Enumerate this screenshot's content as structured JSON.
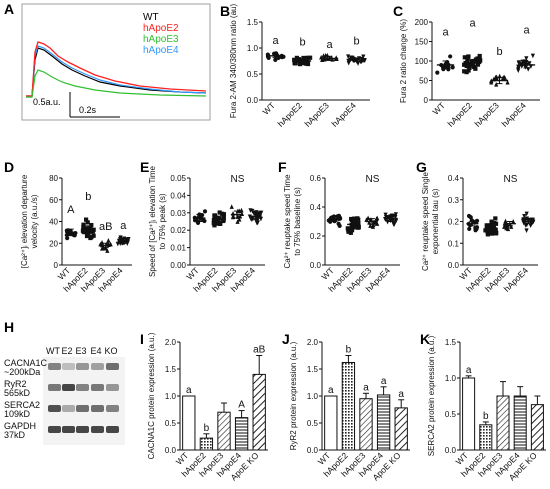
{
  "panel_labels": {
    "A": "A",
    "B": "B",
    "C": "C",
    "D": "D",
    "E": "E",
    "F": "F",
    "G": "G",
    "H": "H",
    "I": "I",
    "J": "J",
    "K": "K"
  },
  "colors": {
    "WT": "#000000",
    "hApoE2": "#ff2020",
    "hApoE3": "#30c030",
    "hApoE4": "#3399ff",
    "scatter": "#111111"
  },
  "panel_a": {
    "legend": [
      {
        "label": "WT",
        "color": "#000000"
      },
      {
        "label": "hApoE2",
        "color": "#ff2020"
      },
      {
        "label": "hApoE3",
        "color": "#30c030"
      },
      {
        "label": "hApoE4",
        "color": "#3399ff"
      }
    ],
    "scale_y": "0.5a.u.",
    "scale_x": "0.2s"
  },
  "panel_h": {
    "lane_labels": [
      "WT",
      "E2",
      "E3",
      "E4",
      "KO"
    ],
    "rows": [
      {
        "name": "CACNA1C",
        "mw": "~200kDa"
      },
      {
        "name": "RyR2",
        "mw": "565kD"
      },
      {
        "name": "SERCA2",
        "mw": "109kD"
      },
      {
        "name": "GAPDH",
        "mw": "37kD"
      }
    ]
  },
  "chart_data": [
    {
      "panel": "B",
      "type": "scatter",
      "categories": [
        "WT",
        "hApoE2",
        "hApoE3",
        "hApoE4"
      ],
      "ylabel": "Fura 2-AM 340/380nm ratio (au)",
      "ylim": [
        0,
        1.5
      ],
      "yticks": [
        0.0,
        0.5,
        1.0,
        1.5
      ],
      "means": [
        0.85,
        0.75,
        0.8,
        0.77
      ],
      "sem": [
        0.03,
        0.03,
        0.04,
        0.03
      ],
      "counts": [
        14,
        30,
        13,
        24
      ],
      "spread": [
        0.1,
        0.12,
        0.1,
        0.1
      ],
      "letters": [
        "a",
        "b",
        "a",
        "b"
      ],
      "letter_y": [
        1.08,
        1.05,
        1.0,
        1.07
      ],
      "tick_decimals": 1
    },
    {
      "panel": "C",
      "type": "scatter",
      "categories": [
        "WT",
        "hApoE2",
        "hApoE3",
        "hApoE4"
      ],
      "ylabel": "Fura 2 ratio change (%)",
      "ylim": [
        0,
        200
      ],
      "yticks": [
        0,
        50,
        100,
        150,
        200
      ],
      "means": [
        90,
        95,
        50,
        90
      ],
      "sem": [
        10,
        8,
        8,
        8
      ],
      "counts": [
        14,
        30,
        13,
        24
      ],
      "spread": [
        35,
        35,
        20,
        30
      ],
      "letters": [
        "a",
        "a",
        "b",
        "a"
      ],
      "letter_y": [
        165,
        188,
        115,
        170
      ],
      "tick_decimals": 0
    },
    {
      "panel": "D",
      "type": "scatter",
      "categories": [
        "WT",
        "hApoE2",
        "hApoE3",
        "hApoE4"
      ],
      "ylabel": "[Ca²⁺]ᵢ elevation departure velocity (a.u./s)",
      "ylim": [
        0,
        80
      ],
      "yticks": [
        0,
        20,
        40,
        60,
        80
      ],
      "means": [
        30,
        33,
        18,
        22
      ],
      "sem": [
        3,
        3,
        2,
        2
      ],
      "counts": [
        14,
        30,
        13,
        24
      ],
      "spread": [
        9,
        12,
        6,
        6
      ],
      "letters": [
        "A",
        "b",
        "aB",
        "a"
      ],
      "letter_y": [
        48,
        60,
        32,
        33
      ],
      "tick_decimals": 0
    },
    {
      "panel": "E",
      "type": "scatter",
      "categories": [
        "WT",
        "hApoE2",
        "hApoE3",
        "hApoE4"
      ],
      "ylabel": "Speed of [Ca²⁺]ᵢ elevation Time to 75% peak (s)",
      "ylim": [
        0,
        0.05
      ],
      "yticks": [
        0.0,
        0.01,
        0.02,
        0.03,
        0.04,
        0.05
      ],
      "means": [
        0.027,
        0.026,
        0.029,
        0.028
      ],
      "sem": [
        0.002,
        0.001,
        0.002,
        0.002
      ],
      "counts": [
        14,
        30,
        13,
        24
      ],
      "spread": [
        0.005,
        0.006,
        0.006,
        0.006
      ],
      "annotation": "NS",
      "tick_decimals": 2
    },
    {
      "panel": "F",
      "type": "scatter",
      "categories": [
        "WT",
        "hApoE2",
        "hApoE3",
        "hApoE4"
      ],
      "ylabel": "Ca²⁺ reuptake speed Time to 75% baseline (s)",
      "ylim": [
        0,
        0.6
      ],
      "yticks": [
        0.0,
        0.2,
        0.4,
        0.6
      ],
      "means": [
        0.32,
        0.28,
        0.3,
        0.32
      ],
      "sem": [
        0.02,
        0.02,
        0.02,
        0.02
      ],
      "counts": [
        14,
        30,
        13,
        24
      ],
      "spread": [
        0.06,
        0.07,
        0.06,
        0.06
      ],
      "annotation": "NS",
      "tick_decimals": 1
    },
    {
      "panel": "G",
      "type": "scatter",
      "categories": [
        "WT",
        "hApoE2",
        "hApoE3",
        "hApoE4"
      ],
      "ylabel": "Ca²⁺ reuptake speed Single exponential tau (s)",
      "ylim": [
        0,
        0.4
      ],
      "yticks": [
        0.0,
        0.1,
        0.2,
        0.3,
        0.4
      ],
      "means": [
        0.19,
        0.17,
        0.19,
        0.2
      ],
      "sem": [
        0.01,
        0.01,
        0.01,
        0.01
      ],
      "counts": [
        14,
        30,
        13,
        24
      ],
      "spread": [
        0.05,
        0.06,
        0.05,
        0.05
      ],
      "annotation": "NS",
      "tick_decimals": 1
    },
    {
      "panel": "I",
      "type": "bar",
      "categories": [
        "WT",
        "hApoE2",
        "hApoE3",
        "hApoE4",
        "ApoE KO"
      ],
      "ylabel": "CACNA1C protein expression (a.u.)",
      "ylim": [
        0,
        2.0
      ],
      "yticks": [
        0.0,
        0.5,
        1.0,
        1.5,
        2.0
      ],
      "values": [
        1.0,
        0.22,
        0.7,
        0.6,
        1.4
      ],
      "errors": [
        0.0,
        0.08,
        0.17,
        0.13,
        0.35
      ],
      "letters": [
        "a",
        "b",
        "",
        "A",
        "aB"
      ],
      "patterns": [
        "white",
        "dots",
        "diag",
        "horiz",
        "diag2"
      ],
      "tick_decimals": 1
    },
    {
      "panel": "J",
      "type": "bar",
      "categories": [
        "WT",
        "hApoE2",
        "hApoE3",
        "hApoE4",
        "ApoE KO"
      ],
      "ylabel": "RyR2 protein expression (a.u.)",
      "ylim": [
        0,
        2.0
      ],
      "yticks": [
        0.0,
        0.5,
        1.0,
        1.5,
        2.0
      ],
      "values": [
        1.0,
        1.62,
        0.95,
        1.02,
        0.78
      ],
      "errors": [
        0.0,
        0.13,
        0.1,
        0.15,
        0.15
      ],
      "letters": [
        "a",
        "b",
        "a",
        "a",
        "a"
      ],
      "patterns": [
        "white",
        "dots",
        "diag",
        "horiz",
        "diag2"
      ],
      "tick_decimals": 1
    },
    {
      "panel": "K",
      "type": "bar",
      "categories": [
        "WT",
        "hApoE2",
        "hApoE3",
        "hApoE4",
        "ApoE KO"
      ],
      "ylabel": "SERCA2 protein expression (a.u.)",
      "ylim": [
        0,
        1.5
      ],
      "yticks": [
        0.0,
        0.5,
        1.0,
        1.5
      ],
      "values": [
        1.0,
        0.35,
        0.75,
        0.75,
        0.63
      ],
      "errors": [
        0.03,
        0.04,
        0.2,
        0.13,
        0.12
      ],
      "letters": [
        "a",
        "b",
        "",
        "",
        ""
      ],
      "patterns": [
        "white",
        "dots",
        "diag",
        "horiz",
        "diag2"
      ],
      "tick_decimals": 1
    }
  ]
}
